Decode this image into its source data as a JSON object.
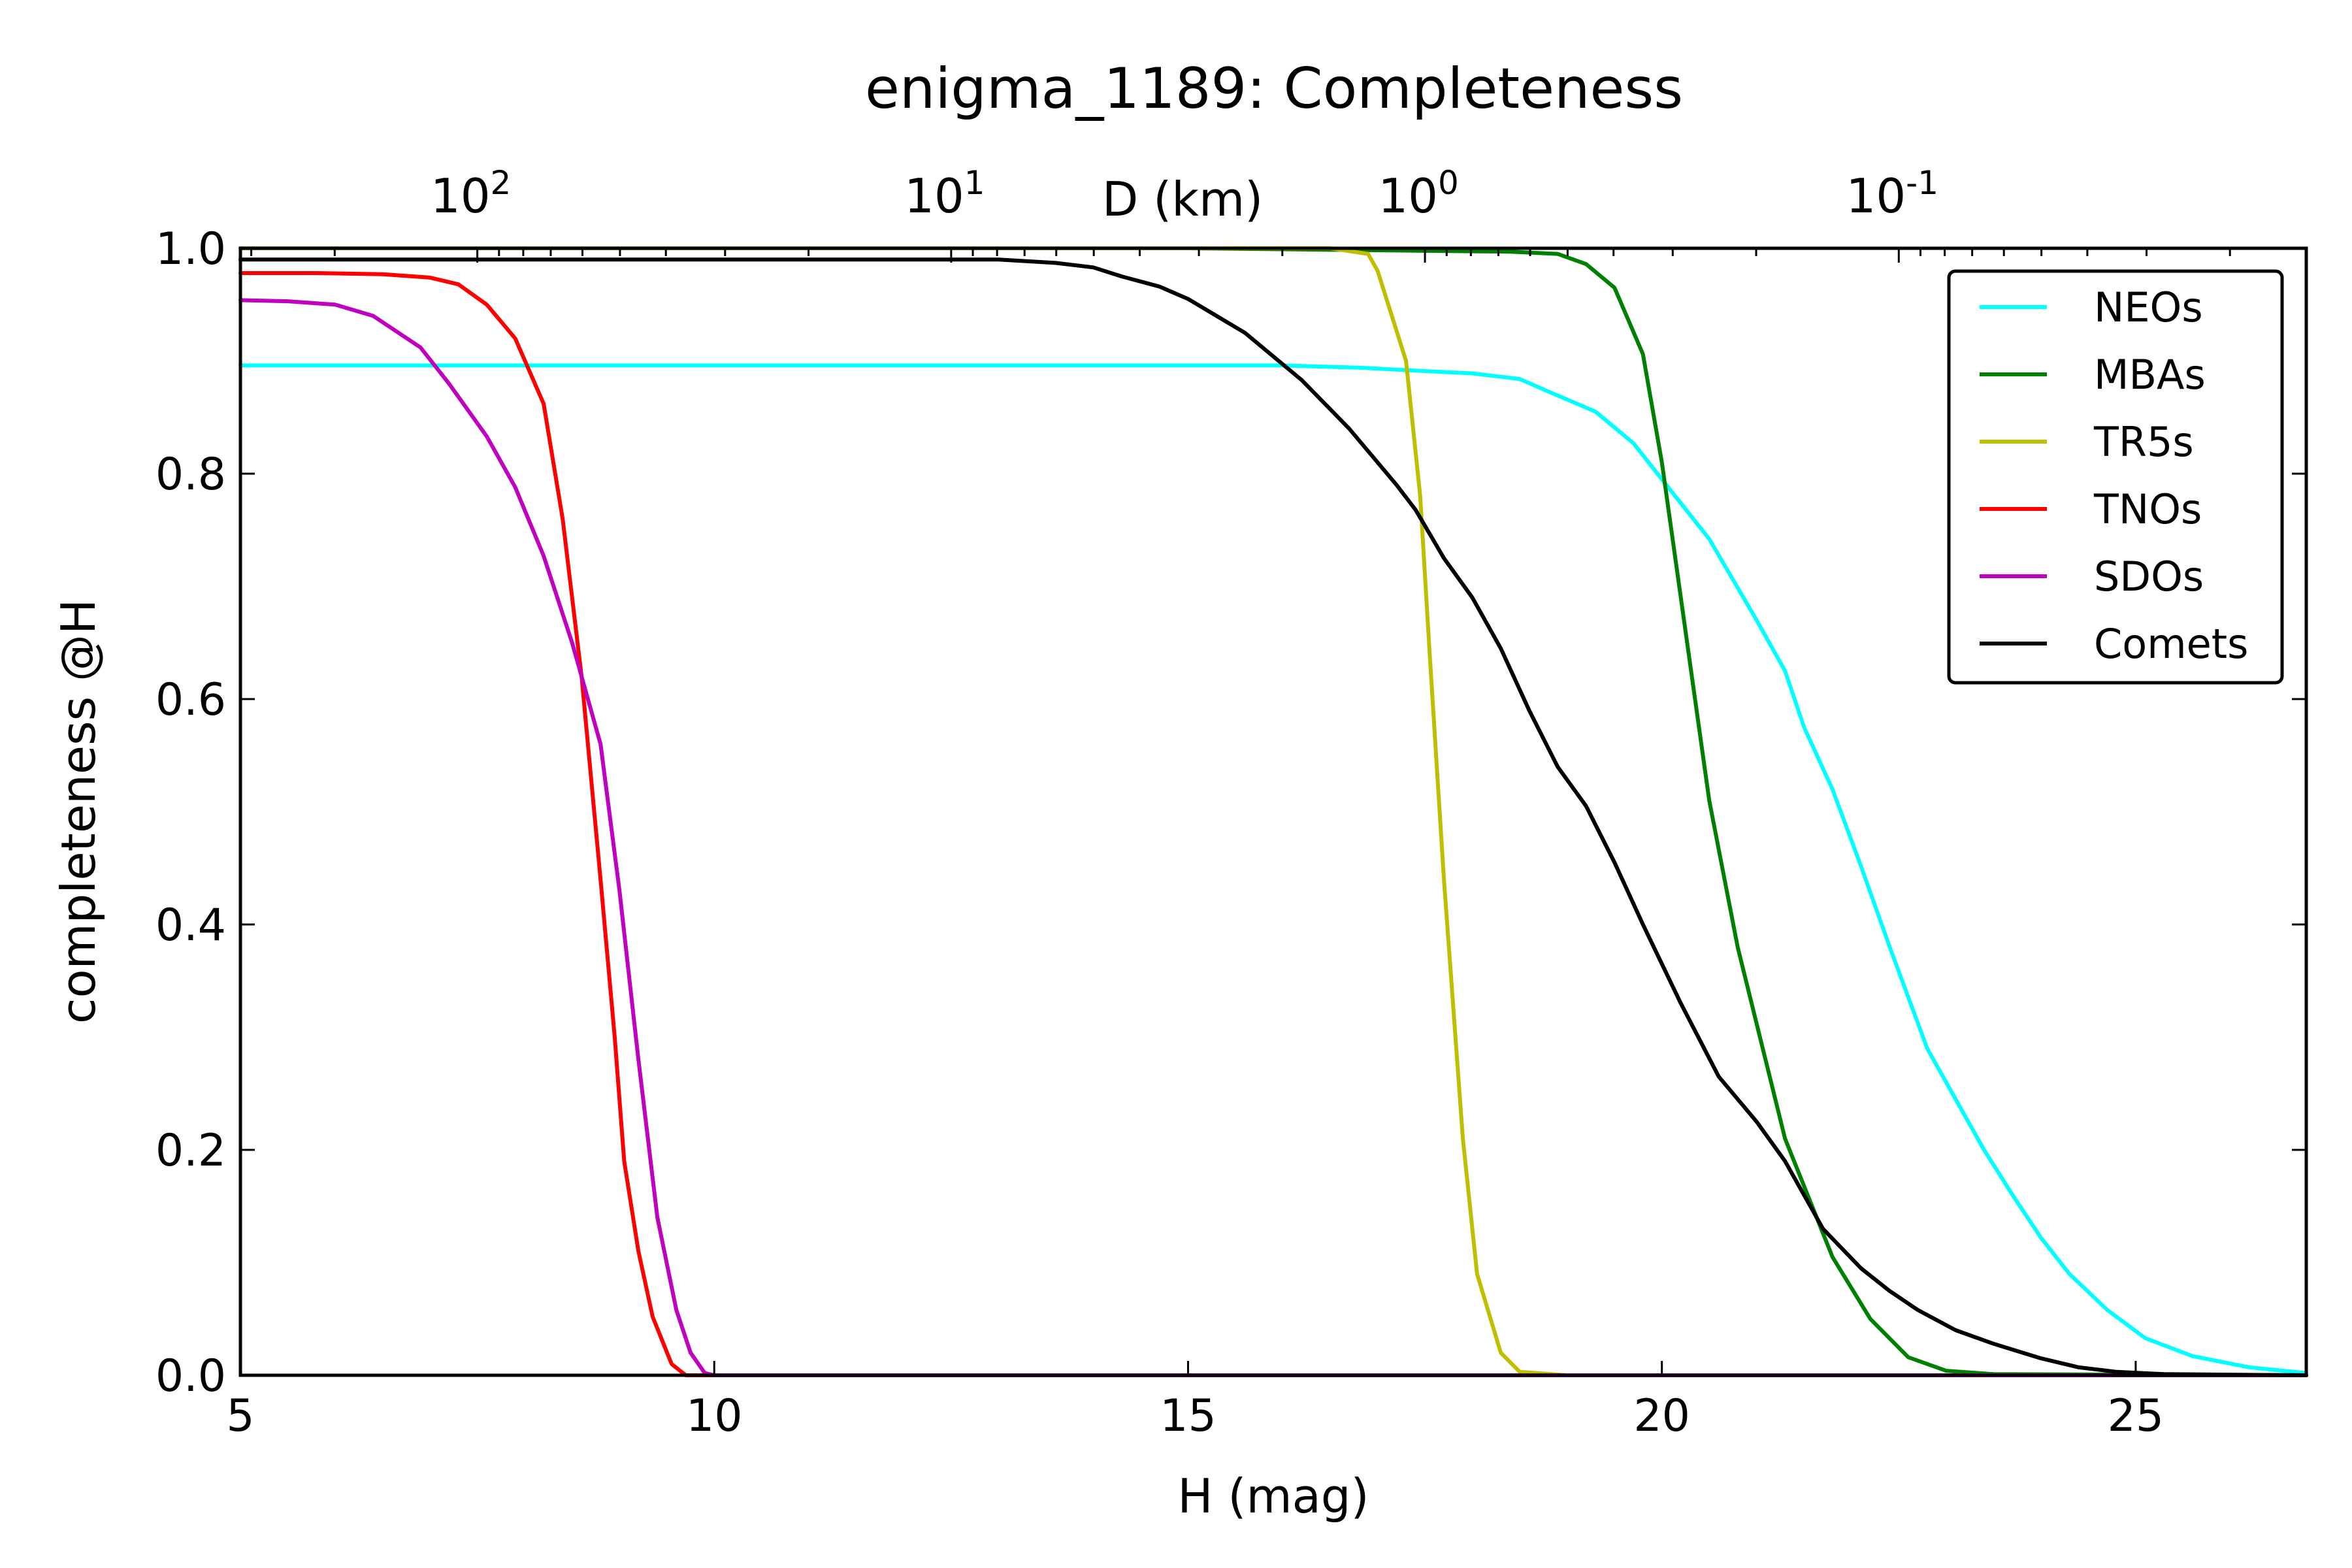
{
  "chart_data": {
    "type": "line",
    "title": "enigma_1189: Completeness",
    "xlabel": "H (mag)",
    "ylabel": "completeness @H",
    "top_xlabel": "D (km)",
    "xlim": [
      5,
      26.8
    ],
    "ylim": [
      0,
      1.0
    ],
    "x_ticks": [
      5,
      10,
      15,
      20,
      25
    ],
    "x_tick_labels": [
      "5",
      "10",
      "15",
      "20",
      "25"
    ],
    "y_ticks": [
      0,
      0.2,
      0.4,
      0.6,
      0.8,
      1.0
    ],
    "y_tick_labels": [
      "0.0",
      "0.2",
      "0.4",
      "0.6",
      "0.8",
      "1.0"
    ],
    "top_ticks": [
      {
        "H": 7.5,
        "base": "10",
        "exp": "2"
      },
      {
        "H": 12.5,
        "base": "10",
        "exp": "1"
      },
      {
        "H": 17.5,
        "base": "10",
        "exp": "0"
      },
      {
        "H": 22.5,
        "base": "10",
        "exp": "-1"
      }
    ],
    "grid": false,
    "legend_position": "top-right",
    "series": [
      {
        "name": "NEOs",
        "color": "#00ffff",
        "points": [
          [
            5.0,
            0.896
          ],
          [
            8,
            0.896
          ],
          [
            12,
            0.896
          ],
          [
            16,
            0.896
          ],
          [
            16.8,
            0.894
          ],
          [
            17.5,
            0.891
          ],
          [
            18.0,
            0.889
          ],
          [
            18.5,
            0.884
          ],
          [
            18.8,
            0.873
          ],
          [
            19.3,
            0.855
          ],
          [
            19.7,
            0.827
          ],
          [
            20.0,
            0.795
          ],
          [
            20.5,
            0.742
          ],
          [
            21.0,
            0.67
          ],
          [
            21.3,
            0.625
          ],
          [
            21.5,
            0.575
          ],
          [
            21.8,
            0.52
          ],
          [
            22.1,
            0.452
          ],
          [
            22.4,
            0.381
          ],
          [
            22.8,
            0.29
          ],
          [
            23.1,
            0.245
          ],
          [
            23.4,
            0.2
          ],
          [
            23.7,
            0.16
          ],
          [
            24.0,
            0.122
          ],
          [
            24.3,
            0.09
          ],
          [
            24.7,
            0.058
          ],
          [
            25.1,
            0.033
          ],
          [
            25.6,
            0.017
          ],
          [
            26.2,
            0.007
          ],
          [
            26.8,
            0.002
          ]
        ]
      },
      {
        "name": "MBAs",
        "color": "#008000",
        "points": [
          [
            5,
            1.0
          ],
          [
            10,
            1.0
          ],
          [
            15,
            1.0
          ],
          [
            18.4,
            0.997
          ],
          [
            18.9,
            0.995
          ],
          [
            19.2,
            0.986
          ],
          [
            19.5,
            0.965
          ],
          [
            19.8,
            0.906
          ],
          [
            20.0,
            0.81
          ],
          [
            20.2,
            0.69
          ],
          [
            20.5,
            0.51
          ],
          [
            20.8,
            0.38
          ],
          [
            21.3,
            0.21
          ],
          [
            21.8,
            0.105
          ],
          [
            22.2,
            0.05
          ],
          [
            22.6,
            0.016
          ],
          [
            23.0,
            0.004
          ],
          [
            23.5,
            0.001
          ],
          [
            26.8,
            0.0
          ]
        ]
      },
      {
        "name": "TR5s",
        "color": "#bfbf00",
        "points": [
          [
            5,
            1.0
          ],
          [
            10,
            1.0
          ],
          [
            16.5,
            1.0
          ],
          [
            16.9,
            0.995
          ],
          [
            17.0,
            0.98
          ],
          [
            17.3,
            0.9
          ],
          [
            17.45,
            0.78
          ],
          [
            17.55,
            0.64
          ],
          [
            17.7,
            0.44
          ],
          [
            17.9,
            0.21
          ],
          [
            18.05,
            0.09
          ],
          [
            18.3,
            0.02
          ],
          [
            18.5,
            0.003
          ],
          [
            19.0,
            0.0
          ],
          [
            26.8,
            0.0
          ]
        ]
      },
      {
        "name": "TNOs",
        "color": "#ff0000",
        "points": [
          [
            5.0,
            0.978
          ],
          [
            5.8,
            0.978
          ],
          [
            6.5,
            0.977
          ],
          [
            7.0,
            0.974
          ],
          [
            7.3,
            0.968
          ],
          [
            7.6,
            0.95
          ],
          [
            7.9,
            0.92
          ],
          [
            8.2,
            0.862
          ],
          [
            8.4,
            0.76
          ],
          [
            8.6,
            0.62
          ],
          [
            8.8,
            0.44
          ],
          [
            8.95,
            0.3
          ],
          [
            9.05,
            0.19
          ],
          [
            9.2,
            0.11
          ],
          [
            9.35,
            0.052
          ],
          [
            9.55,
            0.01
          ],
          [
            9.7,
            0.0
          ],
          [
            26.8,
            0.0
          ]
        ]
      },
      {
        "name": "SDOs",
        "color": "#bf00bf",
        "points": [
          [
            5.0,
            0.954
          ],
          [
            5.5,
            0.953
          ],
          [
            6.0,
            0.95
          ],
          [
            6.4,
            0.94
          ],
          [
            6.9,
            0.912
          ],
          [
            7.2,
            0.88
          ],
          [
            7.6,
            0.833
          ],
          [
            7.9,
            0.788
          ],
          [
            8.2,
            0.727
          ],
          [
            8.5,
            0.65
          ],
          [
            8.8,
            0.56
          ],
          [
            9.0,
            0.43
          ],
          [
            9.2,
            0.28
          ],
          [
            9.4,
            0.14
          ],
          [
            9.6,
            0.058
          ],
          [
            9.75,
            0.02
          ],
          [
            9.9,
            0.002
          ],
          [
            10.0,
            0.0
          ],
          [
            26.8,
            0.0
          ]
        ]
      },
      {
        "name": "Comets",
        "color": "#000000",
        "points": [
          [
            5.0,
            0.99
          ],
          [
            8,
            0.99
          ],
          [
            11,
            0.99
          ],
          [
            13,
            0.99
          ],
          [
            13.6,
            0.987
          ],
          [
            14.0,
            0.983
          ],
          [
            14.3,
            0.975
          ],
          [
            14.7,
            0.966
          ],
          [
            15.0,
            0.955
          ],
          [
            15.3,
            0.94
          ],
          [
            15.6,
            0.925
          ],
          [
            16.2,
            0.883
          ],
          [
            16.7,
            0.84
          ],
          [
            17.2,
            0.79
          ],
          [
            17.4,
            0.768
          ],
          [
            17.7,
            0.725
          ],
          [
            18.0,
            0.69
          ],
          [
            18.3,
            0.645
          ],
          [
            18.6,
            0.59
          ],
          [
            18.9,
            0.54
          ],
          [
            19.2,
            0.505
          ],
          [
            19.5,
            0.455
          ],
          [
            19.8,
            0.4
          ],
          [
            20.2,
            0.33
          ],
          [
            20.6,
            0.265
          ],
          [
            21.0,
            0.225
          ],
          [
            21.3,
            0.19
          ],
          [
            21.7,
            0.13
          ],
          [
            22.1,
            0.095
          ],
          [
            22.4,
            0.075
          ],
          [
            22.7,
            0.058
          ],
          [
            23.1,
            0.04
          ],
          [
            23.5,
            0.028
          ],
          [
            24.0,
            0.015
          ],
          [
            24.4,
            0.007
          ],
          [
            24.8,
            0.003
          ],
          [
            25.3,
            0.001
          ],
          [
            26.8,
            0.0
          ]
        ]
      }
    ]
  }
}
